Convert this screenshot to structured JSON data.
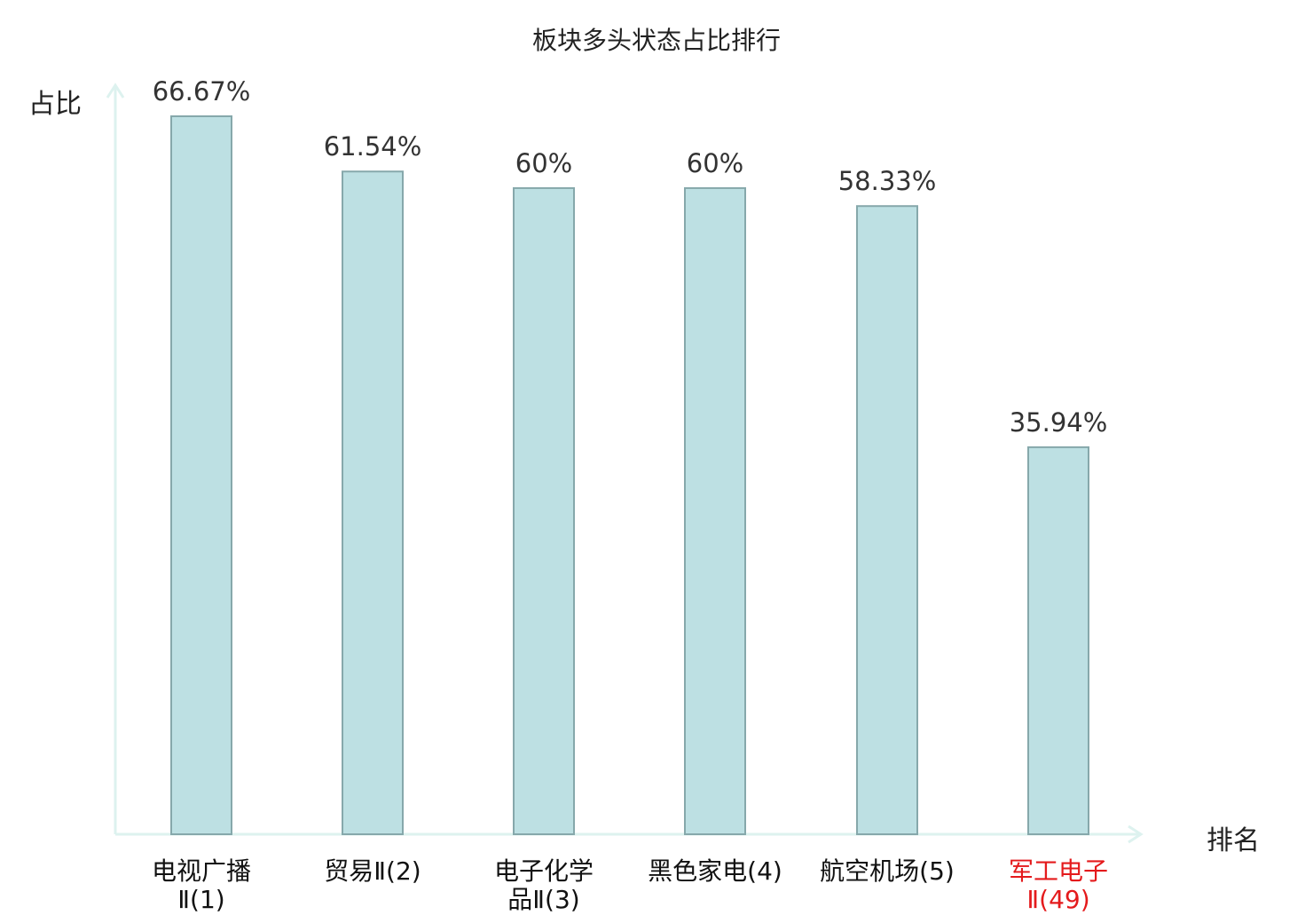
{
  "chart_data": {
    "type": "bar",
    "title": "板块多头状态占比排行",
    "ylabel": "占比",
    "xlabel": "排名",
    "ylim": [
      0,
      70
    ],
    "categories": [
      {
        "name": "电视广播",
        "suffix": "Ⅱ(1)",
        "wrap": true,
        "highlight": false
      },
      {
        "name": "贸易Ⅱ(2)",
        "suffix": "",
        "wrap": false,
        "highlight": false
      },
      {
        "name": "电子化学",
        "suffix": "品Ⅱ(3)",
        "wrap": true,
        "highlight": false
      },
      {
        "name": "黑色家电(4)",
        "suffix": "",
        "wrap": false,
        "highlight": false
      },
      {
        "name": "航空机场(5)",
        "suffix": "",
        "wrap": false,
        "highlight": false
      },
      {
        "name": "军工电子",
        "suffix": "Ⅱ(49)",
        "wrap": true,
        "highlight": true
      }
    ],
    "values": [
      66.67,
      61.54,
      60,
      60,
      58.33,
      35.94
    ],
    "value_labels": [
      "66.67%",
      "61.54%",
      "60%",
      "60%",
      "58.33%",
      "35.94%"
    ],
    "grid": false,
    "colors": {
      "bar_fill": "#bde0e3",
      "bar_stroke": "#86a8ab",
      "axis": "#ddf2ef",
      "highlight_text": "#e41a1c",
      "normal_text": "#111111"
    }
  }
}
